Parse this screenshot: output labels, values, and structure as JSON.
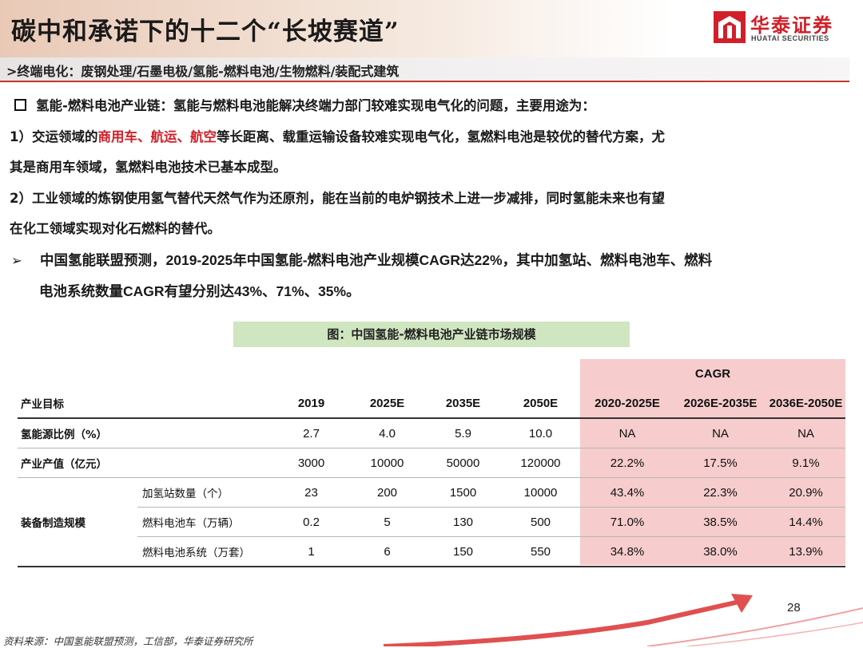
{
  "slide": {
    "title": "碳中和承诺下的十二个“长坡赛道”",
    "logo": {
      "cn": "华泰证券",
      "en": "HUATAI SECURITIES"
    },
    "breadcrumb": ">终端电化：废钢处理/石墨电极/氢能-燃料电池/生物燃料/装配式建筑",
    "page_number": "28",
    "source": "资料来源：中国氢能联盟预测，工信部，华泰证券研究所"
  },
  "content": {
    "intro_label": "氢能-燃料电池产业链：",
    "intro_text": "氢能与燃料电池能解决终端力部门较难实现电气化的问题，主要用途为：",
    "p1_prefix": "1）交运领域的",
    "p1_highlight": "商用车、航运、航空",
    "p1_rest_line1": "等长距离、载重运输设备较难实现电气化，氢燃料电池是较优的替代方案，尤",
    "p1_line2": "其是商用车领域，氢燃料电池技术已基本成型。",
    "p2_line1": "2）工业领域的炼钢使用氢气替代天然气作为还原剂，能在当前的电炉钢技术上进一步减排，同时氢能未来也有望",
    "p2_line2": "在化工领域实现对化石燃料的替代。",
    "bullet_arrow": "➢",
    "bullet_line1": "中国氢能联盟预测，2019-2025年中国氢能-燃料电池产业规模CAGR达22%，其中加氢站、燃料电池车、燃料",
    "bullet_line2": "电池系统数量CAGR有望分别达43%、71%、35%。"
  },
  "table": {
    "caption": "图：中国氢能-燃料电池产业链市场规模",
    "cagr_label": "CAGR",
    "header": [
      "产业目标",
      "2019",
      "2025E",
      "2035E",
      "2050E",
      "2020-2025E",
      "2026E-2035E",
      "2036E-2050E"
    ],
    "rows": [
      {
        "label": "氢能源比例（%）",
        "values": [
          "2.7",
          "4.0",
          "5.9",
          "10.0"
        ],
        "cagr": [
          "NA",
          "NA",
          "NA"
        ]
      },
      {
        "label": "产业产值（亿元）",
        "values": [
          "3000",
          "10000",
          "50000",
          "120000"
        ],
        "cagr": [
          "22.2%",
          "17.5%",
          "9.1%"
        ]
      }
    ],
    "group_label": "装备制造规模",
    "group_rows": [
      {
        "label": "加氢站数量（个）",
        "values": [
          "23",
          "200",
          "1500",
          "10000"
        ],
        "cagr": [
          "43.4%",
          "22.3%",
          "20.9%"
        ]
      },
      {
        "label": "燃料电池车（万辆）",
        "values": [
          "0.2",
          "5",
          "130",
          "500"
        ],
        "cagr": [
          "71.0%",
          "38.5%",
          "14.4%"
        ]
      },
      {
        "label": "燃料电池系统（万套）",
        "values": [
          "1",
          "6",
          "150",
          "550"
        ],
        "cagr": [
          "34.8%",
          "38.0%",
          "13.9%"
        ]
      }
    ]
  },
  "colors": {
    "accent_red": "#d0202a",
    "cagr_fill": "#f6cccc",
    "caption_fill": "#cfe6c1"
  },
  "icons": {
    "logo_mark": "huatai-logo-icon",
    "checkbox": "square-bullet-icon",
    "decor": "red-arrow-decoration-icon"
  }
}
